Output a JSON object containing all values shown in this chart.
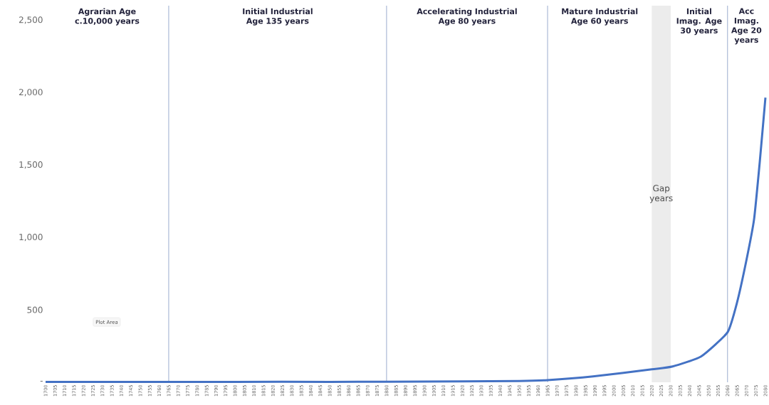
{
  "chart_data": {
    "type": "line",
    "x": [
      1700,
      1750,
      1800,
      1850,
      1880,
      1920,
      1950,
      1965,
      1989,
      2020,
      2031,
      2046,
      2060,
      2065,
      2070,
      2074,
      2077,
      2080
    ],
    "series": [
      {
        "color": "#4472c4",
        "values": [
          2,
          2,
          3,
          3,
          4,
          6,
          9,
          15,
          40,
          89,
          109,
          178,
          345,
          550,
          845,
          1125,
          1520,
          1965
        ]
      }
    ],
    "xlim": [
      1700,
      2080
    ],
    "xticks": [
      1700,
      1705,
      1710,
      1715,
      1720,
      1725,
      1730,
      1735,
      1740,
      1745,
      1750,
      1755,
      1760,
      1765,
      1770,
      1775,
      1780,
      1785,
      1790,
      1795,
      1800,
      1805,
      1810,
      1815,
      1820,
      1825,
      1830,
      1835,
      1840,
      1845,
      1850,
      1855,
      1860,
      1865,
      1870,
      1875,
      1880,
      1885,
      1890,
      1895,
      1900,
      1905,
      1910,
      1915,
      1920,
      1925,
      1930,
      1935,
      1940,
      1945,
      1950,
      1955,
      1960,
      1965,
      1970,
      1975,
      1980,
      1985,
      1990,
      1995,
      2000,
      2005,
      2010,
      2015,
      2020,
      2025,
      2030,
      2035,
      2040,
      2045,
      2050,
      2055,
      2060,
      2065,
      2070,
      2075,
      2080
    ],
    "ylim": [
      0,
      2600
    ],
    "yticks": [
      {
        "value": 0,
        "label": "-"
      },
      {
        "value": 500,
        "label": "500"
      },
      {
        "value": 1000,
        "label": "1,000"
      },
      {
        "value": 1500,
        "label": "1,500"
      },
      {
        "value": 2000,
        "label": "2,000"
      },
      {
        "value": 2500,
        "label": "2,500"
      }
    ],
    "ref_lines": [
      {
        "axis": "x",
        "value": 1765,
        "color": "#8fa3c8"
      },
      {
        "axis": "x",
        "value": 1880,
        "color": "#8fa3c8"
      },
      {
        "axis": "x",
        "value": 1965,
        "color": "#8fa3c8"
      },
      {
        "axis": "x",
        "value": 2060,
        "color": "#8fa3c8"
      }
    ],
    "bands": [
      {
        "axis": "x",
        "from": 2020,
        "to": 2030,
        "label": "Gap years",
        "color": "#ececec"
      }
    ],
    "annotations": [
      "Agrarian Age c.10,000 years",
      "Initial Industrial Age 135 years",
      "Accelerating Industrial Age 80 years",
      "Mature Industrial Age 60 years",
      "Initial Imag. Age 30 years",
      "Acc Imag. Age 20 years",
      "Plot Area"
    ],
    "grid": false,
    "marker": "none",
    "line_style": "solid"
  }
}
